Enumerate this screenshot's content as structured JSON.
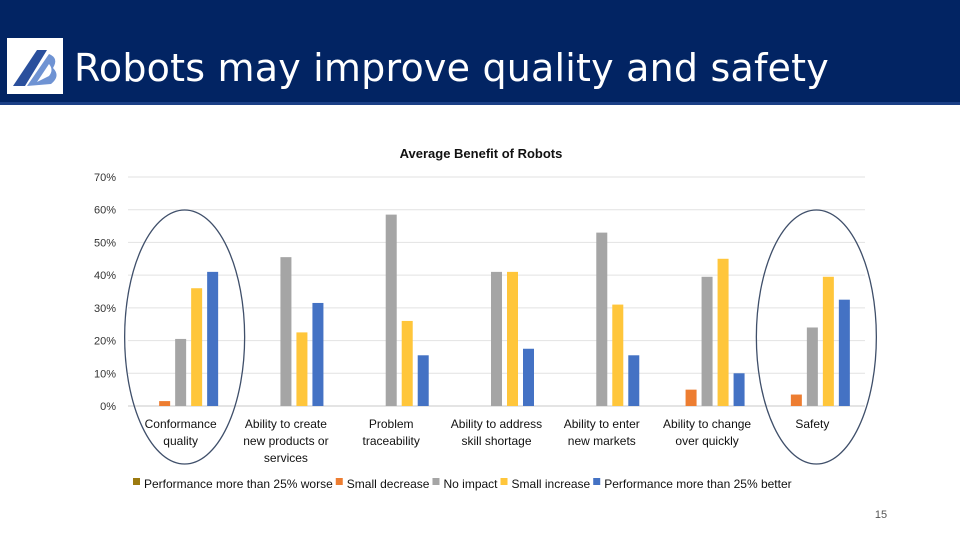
{
  "slide": {
    "title": "Robots may improve quality and safety",
    "page_number": "15",
    "header_color": "#022463"
  },
  "chart_data": {
    "type": "bar",
    "title": "Average Benefit of Robots",
    "categories": [
      [
        "Conformance",
        "quality"
      ],
      [
        "Ability to create",
        "new products or",
        "services"
      ],
      [
        "Problem",
        "traceability"
      ],
      [
        "Ability to address",
        "skill shortage"
      ],
      [
        "Ability to enter",
        "new markets"
      ],
      [
        "Ability to change",
        "over quickly"
      ],
      [
        "Safety"
      ]
    ],
    "yticks": [
      "0%",
      "10%",
      "20%",
      "30%",
      "40%",
      "50%",
      "60%",
      "70%"
    ],
    "ylim": [
      0,
      70
    ],
    "grid": true,
    "legend_position": "bottom",
    "series": [
      {
        "name": "Performance more than 25% worse",
        "color": "#9c7a0f",
        "values": [
          0,
          0,
          0,
          0,
          0,
          0,
          0
        ]
      },
      {
        "name": "Small decrease",
        "color": "#ed7d31",
        "values": [
          1.5,
          0,
          0,
          0,
          0,
          5,
          3.5
        ]
      },
      {
        "name": "No impact",
        "color": "#a5a5a5",
        "values": [
          20.5,
          45.5,
          58.5,
          41,
          53,
          39.5,
          24
        ]
      },
      {
        "name": "Small increase",
        "color": "#ffc63b",
        "values": [
          36,
          22.5,
          26,
          41,
          31,
          45,
          39.5
        ]
      },
      {
        "name": "Performance more than 25% better",
        "color": "#4472c4",
        "values": [
          41,
          31.5,
          15.5,
          17.5,
          15.5,
          10,
          32.5
        ]
      }
    ],
    "highlighted_categories": [
      "Conformance quality",
      "Safety"
    ]
  }
}
